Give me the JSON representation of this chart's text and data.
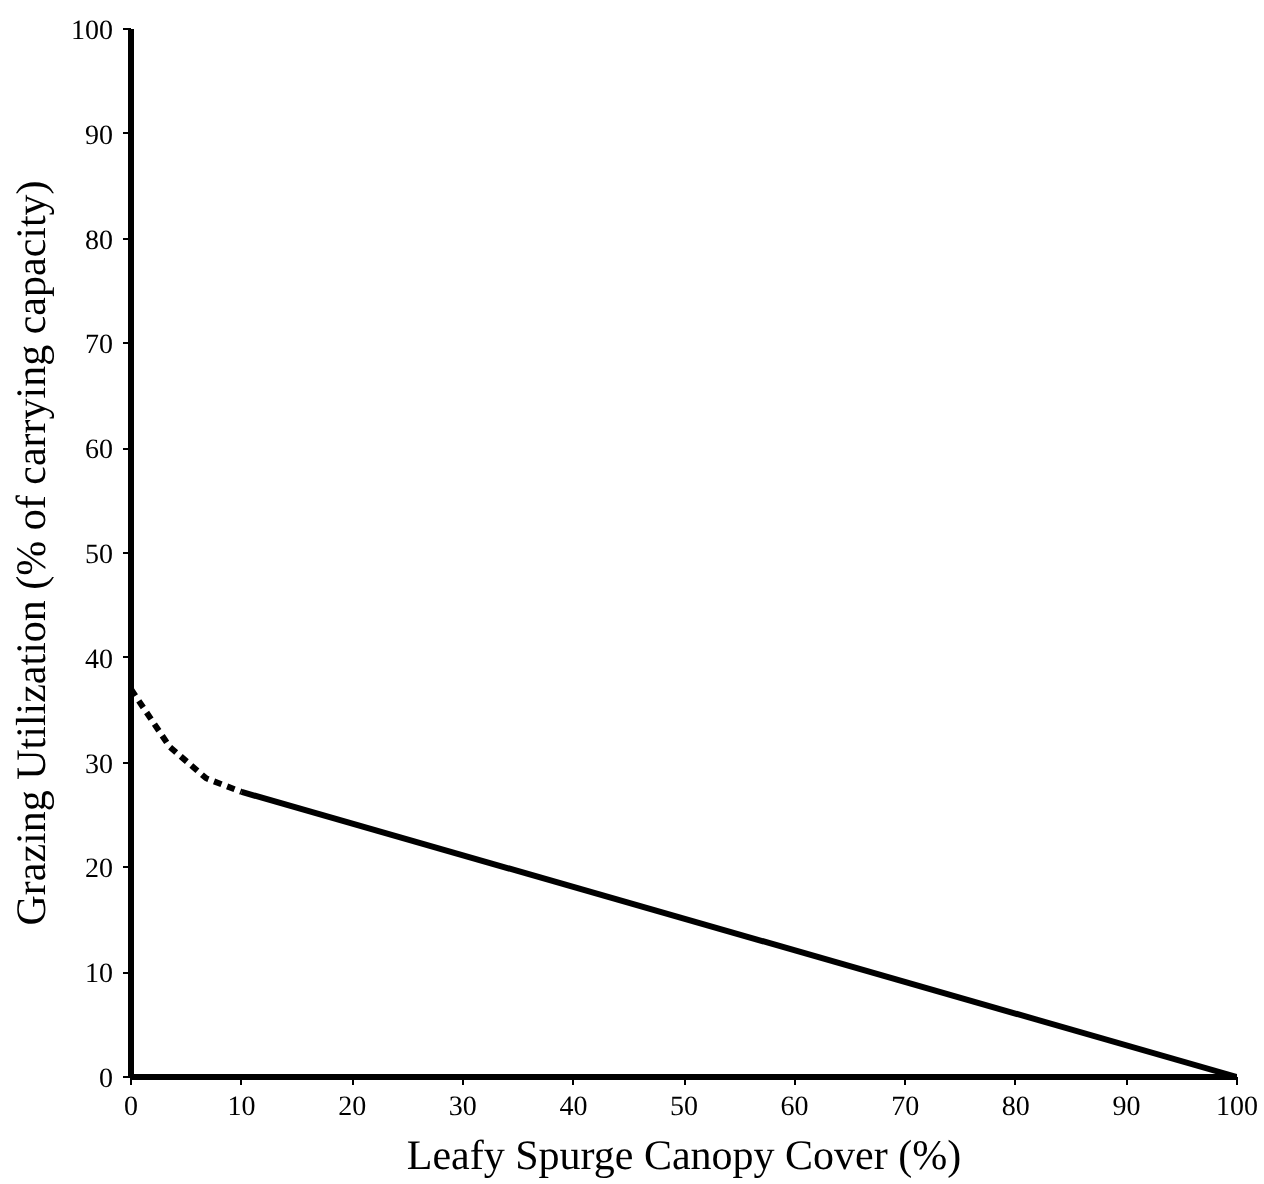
{
  "chart_data": {
    "type": "line",
    "xlabel": "Leafy Spurge Canopy Cover (%)",
    "ylabel": "Grazing Utilization (% of carrying capacity)",
    "xlim": [
      0,
      100
    ],
    "ylim": [
      0,
      100
    ],
    "xticks": [
      0,
      10,
      20,
      30,
      40,
      50,
      60,
      70,
      80,
      90,
      100
    ],
    "yticks": [
      0,
      10,
      20,
      30,
      40,
      50,
      60,
      70,
      80,
      90,
      100
    ],
    "series": [
      {
        "color": "#000000",
        "line_style": "dashed",
        "x": [
          0,
          3.5,
          6.8,
          10
        ],
        "values": [
          37,
          31.5,
          28.5,
          27.2
        ]
      },
      {
        "color": "#000000",
        "line_style": "solid",
        "x": [
          10,
          100
        ],
        "values": [
          27.2,
          0
        ]
      }
    ]
  }
}
